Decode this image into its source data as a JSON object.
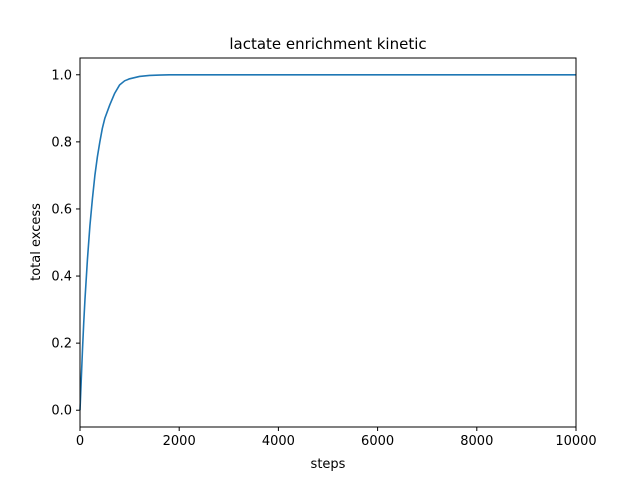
{
  "chart_data": {
    "type": "line",
    "title": "lactate enrichment kinetic",
    "xlabel": "steps",
    "ylabel": "total excess",
    "xlim": [
      0,
      10000
    ],
    "ylim": [
      -0.05,
      1.05
    ],
    "xticks": [
      0,
      2000,
      4000,
      6000,
      8000,
      10000
    ],
    "xtick_labels": [
      "0",
      "2000",
      "4000",
      "6000",
      "8000",
      "10000"
    ],
    "yticks": [
      0.0,
      0.2,
      0.4,
      0.6,
      0.8,
      1.0
    ],
    "ytick_labels": [
      "0.0",
      "0.2",
      "0.4",
      "0.6",
      "0.8",
      "1.0"
    ],
    "grid": false,
    "series": [
      {
        "color": "#1f77b4",
        "x": [
          0,
          25,
          50,
          75,
          100,
          150,
          200,
          250,
          300,
          350,
          400,
          450,
          500,
          600,
          700,
          800,
          900,
          1000,
          1200,
          1400,
          1600,
          1800,
          2000,
          3000,
          4000,
          5000,
          6000,
          7000,
          8000,
          9000,
          10000
        ],
        "y": [
          0.0,
          0.09,
          0.18,
          0.26,
          0.33,
          0.45,
          0.55,
          0.63,
          0.7,
          0.755,
          0.8,
          0.84,
          0.87,
          0.91,
          0.945,
          0.97,
          0.982,
          0.988,
          0.995,
          0.998,
          0.999,
          1.0,
          1.0,
          1.0,
          1.0,
          1.0,
          1.0,
          1.0,
          1.0,
          1.0,
          1.0
        ]
      }
    ]
  }
}
